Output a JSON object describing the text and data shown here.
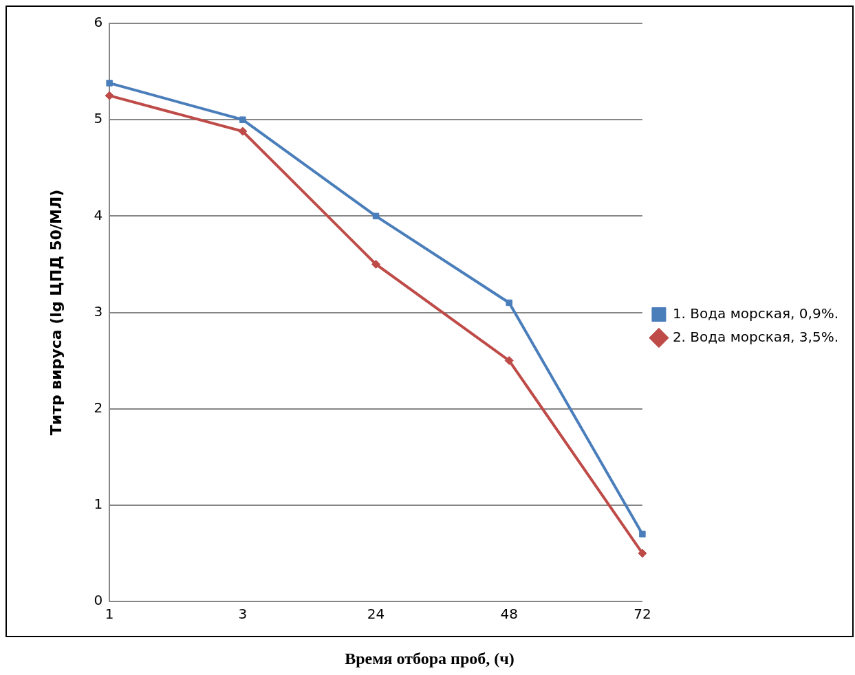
{
  "chart_data": {
    "type": "line",
    "xlabel": "Время отбора проб, (ч)",
    "ylabel": "Титр вируса (lg ЦПД 50/МЛ)",
    "categories": [
      "1",
      "3",
      "24",
      "48",
      "72"
    ],
    "series": [
      {
        "name": "1. Вода морская, 0,9%.",
        "color": "#4a7ebb",
        "marker": "square",
        "values": [
          5.38,
          5.0,
          4.0,
          3.1,
          0.7
        ]
      },
      {
        "name": "2. Вода морская, 3,5%.",
        "color": "#be4b48",
        "marker": "diamond",
        "values": [
          5.25,
          4.88,
          3.5,
          2.5,
          0.5
        ]
      }
    ],
    "ylim": [
      0,
      6
    ],
    "yticks": [
      0,
      1,
      2,
      3,
      4,
      5,
      6
    ],
    "grid": "y",
    "legend": "right"
  }
}
